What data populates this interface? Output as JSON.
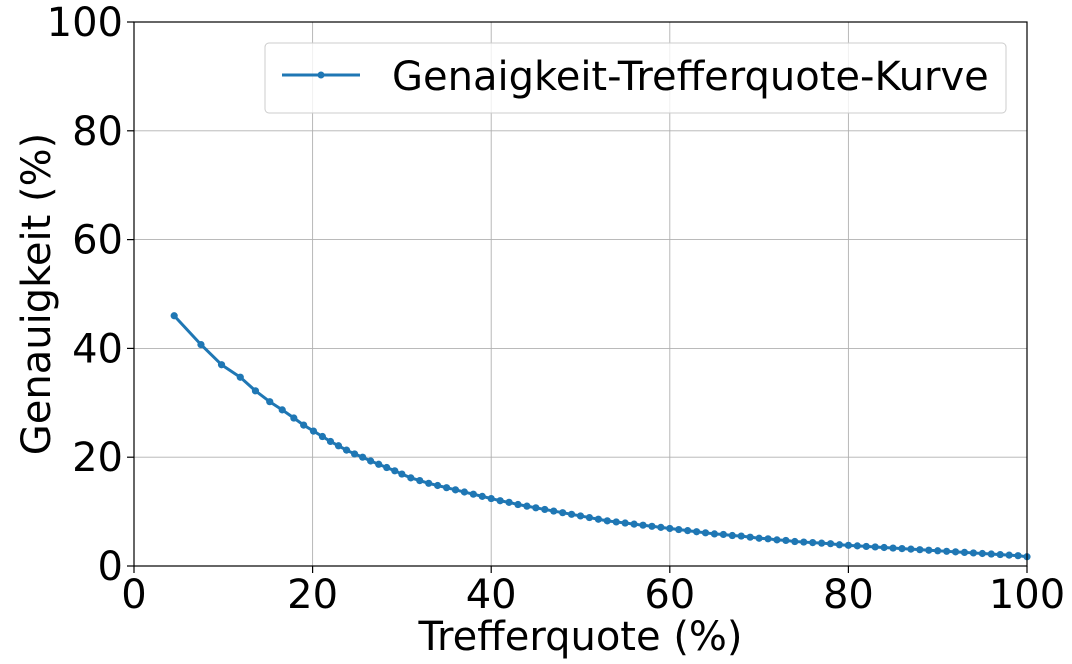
{
  "chart_data": {
    "type": "line",
    "title": "",
    "xlabel": "Trefferquote (%)",
    "ylabel": "Genauigkeit (%)",
    "xlim": [
      0,
      100
    ],
    "ylim": [
      0,
      100
    ],
    "xticks": [
      0,
      20,
      40,
      60,
      80,
      100
    ],
    "yticks": [
      0,
      20,
      40,
      60,
      80,
      100
    ],
    "xtick_labels": [
      "0",
      "20",
      "40",
      "60",
      "80",
      "100"
    ],
    "ytick_labels": [
      "0",
      "20",
      "40",
      "60",
      "80",
      "100"
    ],
    "grid": true,
    "legend_position": "top-right",
    "color": "#1f77b4",
    "series": [
      {
        "name": "Genaigkeit-Trefferquote-Kurve",
        "marker": "circle",
        "x": [
          4.5,
          7.5,
          9.8,
          11.9,
          13.6,
          15.2,
          16.6,
          17.9,
          19.0,
          20.1,
          21.1,
          22.0,
          22.9,
          23.8,
          24.7,
          25.6,
          26.5,
          27.4,
          28.3,
          29.2,
          30.0,
          31.0,
          32.0,
          33.0,
          34.0,
          35.0,
          36.0,
          37.0,
          38.0,
          39.0,
          40.0,
          41.0,
          42.0,
          43.0,
          44.0,
          45.0,
          46.0,
          47.0,
          48.0,
          49.0,
          50.0,
          51.0,
          52.0,
          53.0,
          54.0,
          55.0,
          56.0,
          57.0,
          58.0,
          59.0,
          60.0,
          61.0,
          62.0,
          63.0,
          64.0,
          65.0,
          66.0,
          67.0,
          68.0,
          69.0,
          70.0,
          71.0,
          72.0,
          73.0,
          74.0,
          75.0,
          76.0,
          77.0,
          78.0,
          79.0,
          80.0,
          81.0,
          82.0,
          83.0,
          84.0,
          85.0,
          86.0,
          87.0,
          88.0,
          89.0,
          90.0,
          91.0,
          92.0,
          93.0,
          94.0,
          95.0,
          96.0,
          97.0,
          98.0,
          99.0,
          100.0
        ],
        "y": [
          46.0,
          40.7,
          37.0,
          34.7,
          32.2,
          30.2,
          28.7,
          27.2,
          25.9,
          24.8,
          23.8,
          22.9,
          22.1,
          21.3,
          20.6,
          20.0,
          19.3,
          18.7,
          18.1,
          17.5,
          16.9,
          16.2,
          15.7,
          15.2,
          14.8,
          14.4,
          14.0,
          13.6,
          13.2,
          12.8,
          12.4,
          12.0,
          11.7,
          11.3,
          11.0,
          10.7,
          10.4,
          10.1,
          9.8,
          9.5,
          9.2,
          8.9,
          8.6,
          8.3,
          8.1,
          7.9,
          7.7,
          7.5,
          7.3,
          7.1,
          6.9,
          6.7,
          6.5,
          6.3,
          6.1,
          5.9,
          5.8,
          5.6,
          5.5,
          5.3,
          5.1,
          5.0,
          4.8,
          4.7,
          4.5,
          4.4,
          4.3,
          4.2,
          4.1,
          3.9,
          3.8,
          3.7,
          3.6,
          3.5,
          3.4,
          3.3,
          3.2,
          3.1,
          3.0,
          2.9,
          2.8,
          2.7,
          2.6,
          2.5,
          2.4,
          2.3,
          2.2,
          2.1,
          2.0,
          1.9,
          1.7
        ]
      }
    ]
  }
}
